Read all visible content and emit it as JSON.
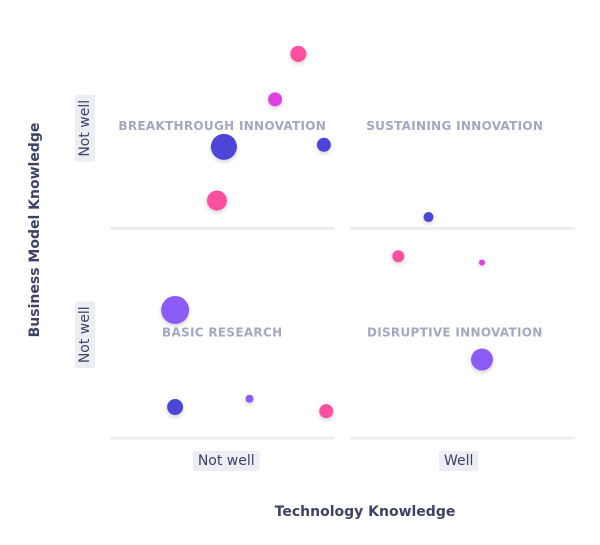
{
  "chart_data": {
    "type": "scatter",
    "xlabel": "Technology Knowledge",
    "ylabel": "Business Model Knowledge",
    "quadrants": [
      "BREAKTHROUGH INNOVATION",
      "SUSTAINING INNOVATION",
      "BASIC RESEARCH",
      "DISRUPTIVE INNOVATION"
    ],
    "xlim": [
      0,
      2
    ],
    "ylim": [
      0,
      2
    ],
    "xticks": [
      {
        "value": 0.5,
        "label": "Not well"
      },
      {
        "value": 1.5,
        "label": "Well"
      }
    ],
    "yticks": [
      {
        "value": 1.5,
        "label": "Not well"
      },
      {
        "value": 0.5,
        "label": "Not well"
      }
    ],
    "x": [
      0.81,
      0.71,
      0.49,
      0.92,
      0.46,
      1.37,
      1.24,
      1.6,
      0.28,
      1.6,
      0.28,
      0.6,
      0.93
    ],
    "values": [
      1.86,
      1.64,
      1.41,
      1.42,
      1.15,
      1.07,
      0.88,
      0.85,
      0.62,
      0.38,
      0.15,
      0.19,
      0.13
    ],
    "sizes": [
      8,
      7,
      13,
      7,
      10,
      5,
      6,
      3,
      14,
      11,
      8,
      4,
      7
    ],
    "colors": [
      "#ff4fa0",
      "#e040e0",
      "#4b45d8",
      "#4b45d8",
      "#ff4fa0",
      "#4b45d8",
      "#ff4fa0",
      "#e040e0",
      "#8b5cf6",
      "#8b5cf6",
      "#4b45d8",
      "#8b5cf6",
      "#ff4fa0"
    ]
  }
}
